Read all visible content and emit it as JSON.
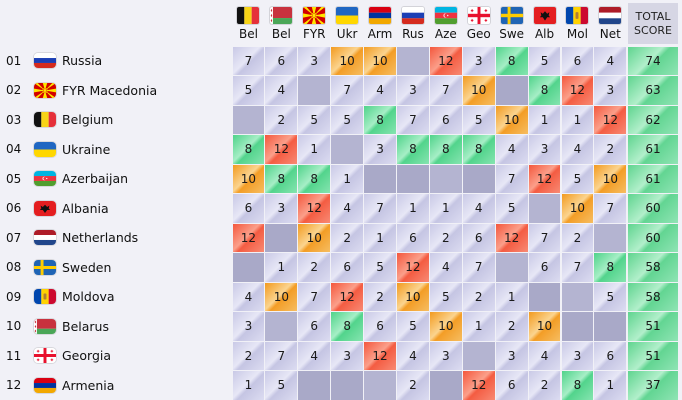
{
  "header": {
    "voters": [
      {
        "code": "Bel",
        "flag": "belgium"
      },
      {
        "code": "Bel",
        "flag": "belarus"
      },
      {
        "code": "FYR",
        "flag": "macedonia"
      },
      {
        "code": "Ukr",
        "flag": "ukraine"
      },
      {
        "code": "Arm",
        "flag": "armenia"
      },
      {
        "code": "Rus",
        "flag": "russia"
      },
      {
        "code": "Aze",
        "flag": "azerbaijan"
      },
      {
        "code": "Geo",
        "flag": "georgia"
      },
      {
        "code": "Swe",
        "flag": "sweden"
      },
      {
        "code": "Alb",
        "flag": "albania"
      },
      {
        "code": "Mol",
        "flag": "moldova"
      },
      {
        "code": "Net",
        "flag": "netherlands"
      }
    ],
    "total_line1": "TOTAL",
    "total_line2": "SCORE"
  },
  "rows": [
    {
      "rank": "01",
      "country": "Russia",
      "flag": "russia",
      "points": [
        "7",
        "6",
        "3",
        "10",
        "10",
        "self",
        "12",
        "3",
        "8",
        "5",
        "6",
        "4"
      ],
      "total": "74"
    },
    {
      "rank": "02",
      "country": "FYR Macedonia",
      "flag": "macedonia",
      "points": [
        "5",
        "4",
        "self",
        "7",
        "4",
        "3",
        "7",
        "10",
        "",
        "8",
        "12",
        "3"
      ],
      "total": "63"
    },
    {
      "rank": "03",
      "country": "Belgium",
      "flag": "belgium",
      "points": [
        "self",
        "2",
        "5",
        "5",
        "8",
        "7",
        "6",
        "5",
        "10",
        "1",
        "1",
        "12"
      ],
      "total": "62"
    },
    {
      "rank": "04",
      "country": "Ukraine",
      "flag": "ukraine",
      "points": [
        "8",
        "12",
        "1",
        "self",
        "3",
        "8",
        "8",
        "8",
        "4",
        "3",
        "4",
        "2"
      ],
      "total": "61"
    },
    {
      "rank": "05",
      "country": "Azerbaijan",
      "flag": "azerbaijan",
      "points": [
        "10",
        "8",
        "8",
        "1",
        "",
        "",
        "self",
        "",
        "7",
        "12",
        "5",
        "10"
      ],
      "total": "61"
    },
    {
      "rank": "06",
      "country": "Albania",
      "flag": "albania",
      "points": [
        "6",
        "3",
        "12",
        "4",
        "7",
        "1",
        "1",
        "4",
        "5",
        "self",
        "10",
        "7"
      ],
      "total": "60"
    },
    {
      "rank": "07",
      "country": "Netherlands",
      "flag": "netherlands",
      "points": [
        "12",
        "",
        "10",
        "2",
        "1",
        "6",
        "2",
        "6",
        "12",
        "7",
        "2",
        "self"
      ],
      "total": "60"
    },
    {
      "rank": "08",
      "country": "Sweden",
      "flag": "sweden",
      "points": [
        "",
        "1",
        "2",
        "6",
        "5",
        "12",
        "4",
        "7",
        "self",
        "6",
        "7",
        "8"
      ],
      "total": "58"
    },
    {
      "rank": "09",
      "country": "Moldova",
      "flag": "moldova",
      "points": [
        "4",
        "10",
        "7",
        "12",
        "2",
        "10",
        "5",
        "2",
        "1",
        "",
        "self",
        "5"
      ],
      "total": "58"
    },
    {
      "rank": "10",
      "country": "Belarus",
      "flag": "belarus",
      "points": [
        "3",
        "self",
        "6",
        "8",
        "6",
        "5",
        "10",
        "1",
        "2",
        "10",
        "",
        ""
      ],
      "total": "51"
    },
    {
      "rank": "11",
      "country": "Georgia",
      "flag": "georgia",
      "points": [
        "2",
        "7",
        "4",
        "3",
        "12",
        "4",
        "3",
        "self",
        "3",
        "4",
        "3",
        "6"
      ],
      "total": "51"
    },
    {
      "rank": "12",
      "country": "Armenia",
      "flag": "armenia",
      "points": [
        "1",
        "5",
        "",
        "",
        "self",
        "2",
        "",
        "12",
        "6",
        "2",
        "8",
        "1"
      ],
      "total": "37"
    }
  ]
}
